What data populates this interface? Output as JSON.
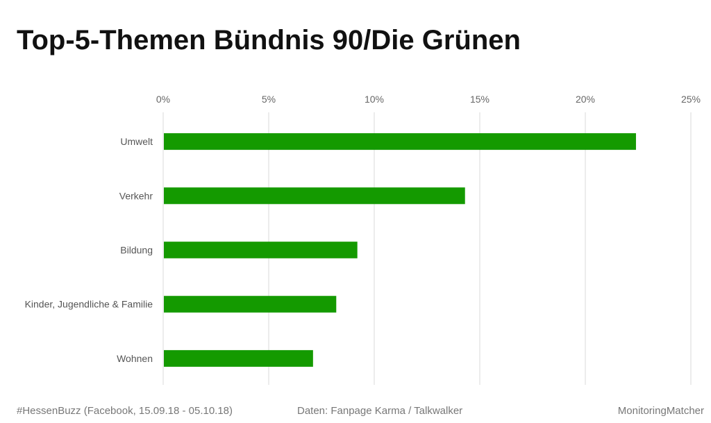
{
  "header": {
    "title": "Top-5-Themen Bündnis 90/Die Grünen"
  },
  "chart_data": {
    "type": "bar",
    "orientation": "horizontal",
    "title": "Top-5-Themen Bündnis 90/Die Grünen",
    "categories": [
      "Umwelt",
      "Verkehr",
      "Bildung",
      "Kinder, Jugendliche & Familie",
      "Wohnen"
    ],
    "values": [
      22.4,
      14.3,
      9.2,
      8.2,
      7.1
    ],
    "unit": "%",
    "xlim": [
      0,
      25
    ],
    "ticks": [
      0,
      5,
      10,
      15,
      20,
      25
    ],
    "tick_labels": [
      "0%",
      "5%",
      "10%",
      "15%",
      "20%",
      "25%"
    ],
    "axis_position": "top",
    "grid": true,
    "bar_color": "#149a00",
    "grid_color": "#d9d9d9",
    "legend": "none"
  },
  "footer": {
    "left": "#HessenBuzz (Facebook, 15.09.18 - 05.10.18)",
    "center": "Daten: Fanpage Karma / Talkwalker",
    "right": "MonitoringMatcher"
  }
}
